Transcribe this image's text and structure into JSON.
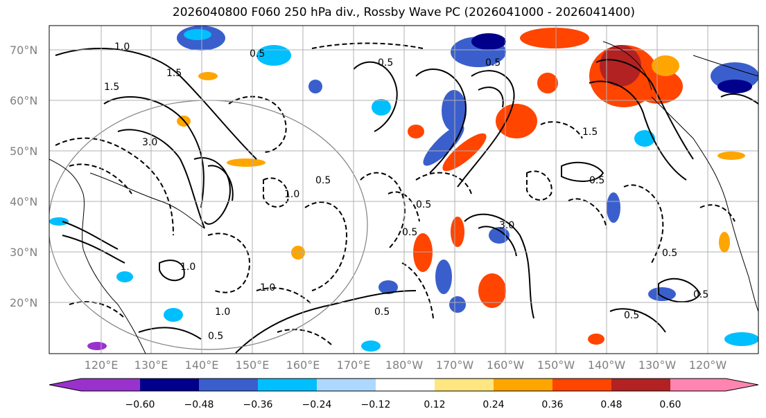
{
  "title": "2026040800 F060 250 hPa div., Rossby Wave PC (2026041000 - 2026041400)",
  "map": {
    "lat_labels": [
      "70°N",
      "60°N",
      "50°N",
      "40°N",
      "30°N",
      "20°N"
    ],
    "lon_labels": [
      "120°E",
      "130°E",
      "140°E",
      "150°E",
      "160°E",
      "170°E",
      "180°W",
      "170°W",
      "160°W",
      "150°W",
      "140°W",
      "130°W",
      "120°W"
    ],
    "contour_labels": [
      "1.0",
      "0.5",
      "1.5",
      "3.0",
      "0.5",
      "0.5",
      "1.0",
      "0.5",
      "0.5",
      "3.0",
      "1.0",
      "1.5",
      "1.0",
      "0.5",
      "0.5",
      "1.0",
      "0.5",
      "0.5",
      "0.5",
      "1.5",
      "0.5",
      "0.5"
    ],
    "colors": {
      "land_line": "#000000",
      "grid": "#b0b0b0",
      "positive_strong": "#b22222",
      "positive_mid": "#ff4500",
      "positive_low": "#ffa500",
      "positive_weak": "#ffe680",
      "negative_weak": "#add8ff",
      "negative_low": "#00bfff",
      "negative_mid": "#3a5fcd",
      "negative_strong": "#00008b"
    }
  },
  "colorbar": {
    "ticks": [
      "−0.60",
      "−0.48",
      "−0.36",
      "−0.24",
      "−0.12",
      "0.12",
      "0.24",
      "0.36",
      "0.48",
      "0.60"
    ],
    "colors": [
      "#9932cc",
      "#00008b",
      "#3a5fcd",
      "#00bfff",
      "#add8ff",
      "#ffffff",
      "#ffe680",
      "#ffa500",
      "#ff4500",
      "#b22222",
      "#ff85b0"
    ]
  }
}
